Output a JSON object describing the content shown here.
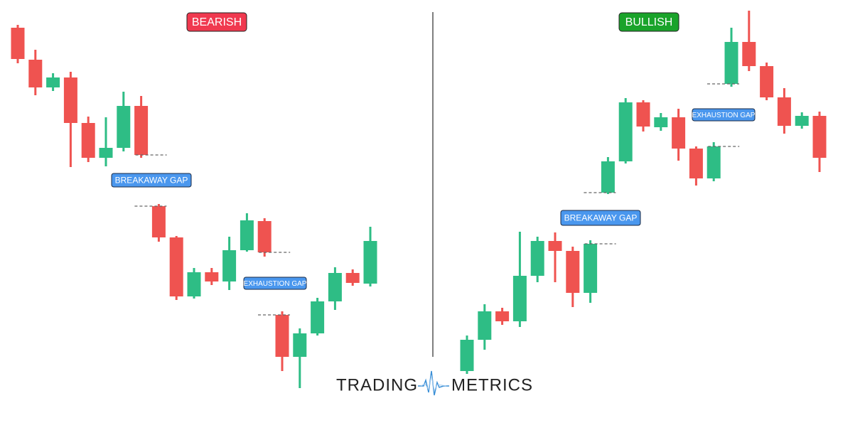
{
  "chart_data": [
    {
      "type": "candlestick",
      "title": "BEARISH",
      "title_color": "#f0394f",
      "up_color": "#2ebd85",
      "down_color": "#ef5350",
      "ylim": [
        0,
        619
      ],
      "annotations": [
        "BREAKAWAY GAP",
        "EXHAUSTION GAP"
      ],
      "open": [
        580,
        535,
        496,
        510,
        446,
        397,
        411,
        470,
        329,
        285,
        202,
        236,
        223,
        267,
        308,
        176,
        117,
        150,
        195,
        235,
        220
      ],
      "high": [
        584,
        549,
        516,
        518,
        455,
        454,
        490,
        484,
        332,
        287,
        242,
        242,
        286,
        319,
        312,
        181,
        157,
        200,
        243,
        240,
        300
      ],
      "low": [
        530,
        485,
        491,
        384,
        391,
        385,
        406,
        397,
        279,
        197,
        199,
        218,
        211,
        265,
        258,
        97,
        73,
        147,
        183,
        217,
        216
      ],
      "close": [
        536,
        496,
        510,
        446,
        397,
        411,
        470,
        401,
        285,
        202,
        236,
        223,
        267,
        309,
        264,
        117,
        150,
        195,
        235,
        221,
        280
      ]
    },
    {
      "type": "candlestick",
      "title": "BULLISH",
      "title_color": "#1aa32a",
      "up_color": "#2ebd85",
      "down_color": "#ef5350",
      "ylim": [
        0,
        619
      ],
      "annotations": [
        "BREAKAWAY GAP",
        "EXHAUSTION GAP"
      ],
      "open": [
        97,
        141,
        181,
        167,
        231,
        280,
        266,
        207,
        348,
        392,
        475,
        440,
        454,
        410,
        368,
        501,
        560,
        526,
        482,
        442,
        456
      ],
      "high": [
        147,
        191,
        186,
        293,
        286,
        292,
        272,
        281,
        398,
        481,
        478,
        460,
        466,
        413,
        419,
        580,
        604,
        531,
        495,
        461,
        462
      ],
      "low": [
        93,
        127,
        162,
        159,
        222,
        222,
        187,
        193,
        346,
        389,
        434,
        435,
        393,
        358,
        364,
        497,
        519,
        478,
        431,
        438,
        377
      ],
      "close": [
        141,
        181,
        167,
        231,
        280,
        266,
        207,
        276,
        392,
        475,
        441,
        454,
        410,
        368,
        413,
        560,
        526,
        482,
        442,
        456,
        397
      ]
    }
  ],
  "logo": {
    "left": "TRADING",
    "right": "METRICS"
  }
}
